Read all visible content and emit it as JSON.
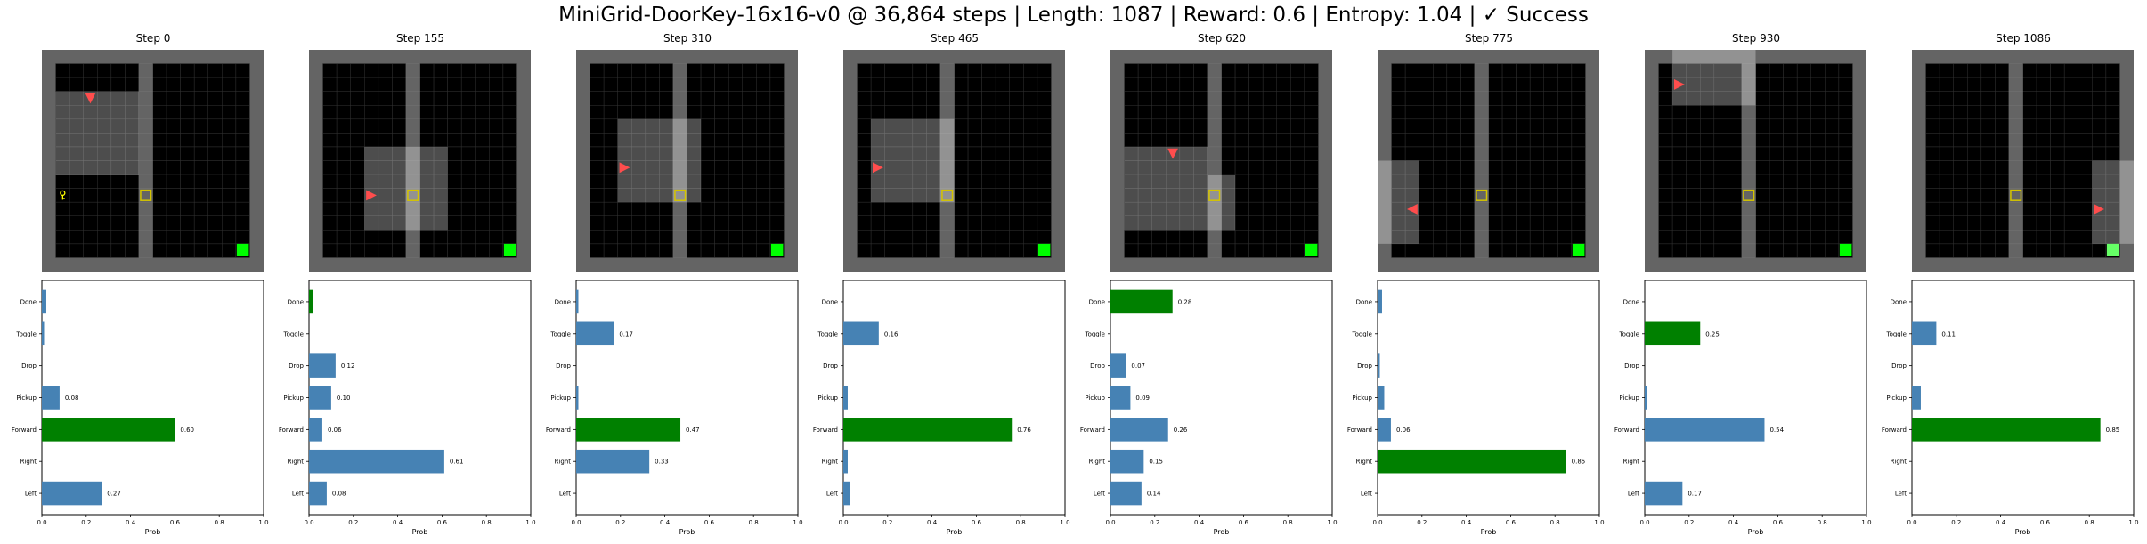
{
  "figure": {
    "title": "MiniGrid-DoorKey-16x16-v0 @ 36,864 steps | Length: 1087 | Reward: 0.6 | Entropy: 1.04 | ✓ Success"
  },
  "colors": {
    "bar_default": "#4682b4",
    "bar_selected": "#008000",
    "agent": "#ff4d4d",
    "goal": "#00ff00",
    "key": "#ffff00",
    "door": "#d4c400",
    "wall": "#646464",
    "floor": "#000000",
    "view_overlay": "rgba(255,255,255,0.30)"
  },
  "chart_data": {
    "type": "bar",
    "orientation": "horizontal",
    "actions": [
      "Left",
      "Right",
      "Forward",
      "Pickup",
      "Drop",
      "Toggle",
      "Done"
    ],
    "xlabel": "Prob",
    "xlim": [
      0,
      1
    ],
    "xticks": [
      "0.0",
      "0.2",
      "0.4",
      "0.6",
      "0.8",
      "1.0"
    ],
    "panels": [
      {
        "title": "Step 0",
        "values": [
          0.27,
          0.0,
          0.6,
          0.08,
          0.0,
          0.01,
          0.02
        ],
        "selected": "Forward",
        "labels": {
          "Left": "0.27",
          "Forward": "0.60",
          "Pickup": "0.08"
        }
      },
      {
        "title": "Step 155",
        "values": [
          0.08,
          0.61,
          0.06,
          0.1,
          0.12,
          0.0,
          0.02
        ],
        "selected": "Done",
        "labels": {
          "Left": "0.08",
          "Right": "0.61",
          "Forward": "0.06",
          "Pickup": "0.10",
          "Drop": "0.12"
        }
      },
      {
        "title": "Step 310",
        "values": [
          0.0,
          0.33,
          0.47,
          0.01,
          0.0,
          0.17,
          0.01
        ],
        "selected": "Forward",
        "labels": {
          "Right": "0.33",
          "Forward": "0.47",
          "Toggle": "0.17"
        }
      },
      {
        "title": "Step 465",
        "values": [
          0.03,
          0.02,
          0.76,
          0.02,
          0.0,
          0.16,
          0.0
        ],
        "selected": "Forward",
        "labels": {
          "Forward": "0.76",
          "Toggle": "0.16"
        }
      },
      {
        "title": "Step 620",
        "values": [
          0.14,
          0.15,
          0.26,
          0.09,
          0.07,
          0.0,
          0.28
        ],
        "selected": "Done",
        "labels": {
          "Left": "0.14",
          "Right": "0.15",
          "Forward": "0.26",
          "Pickup": "0.09",
          "Drop": "0.07",
          "Done": "0.28"
        }
      },
      {
        "title": "Step 775",
        "values": [
          0.0,
          0.85,
          0.06,
          0.03,
          0.01,
          0.0,
          0.02
        ],
        "selected": "Right",
        "labels": {
          "Right": "0.85",
          "Forward": "0.06"
        }
      },
      {
        "title": "Step 930",
        "values": [
          0.17,
          0.0,
          0.54,
          0.01,
          0.0,
          0.25,
          0.0
        ],
        "selected": "Toggle",
        "labels": {
          "Left": "0.17",
          "Forward": "0.54",
          "Toggle": "0.25"
        }
      },
      {
        "title": "Step 1086",
        "values": [
          0.0,
          0.0,
          0.85,
          0.04,
          0.0,
          0.11,
          0.0
        ],
        "selected": "Forward",
        "labels": {
          "Forward": "0.85",
          "Toggle": "0.11"
        }
      }
    ]
  },
  "grid_frames": [
    {
      "agent": [
        3,
        3
      ],
      "dir": "down",
      "view": [
        1,
        3,
        7,
        9
      ],
      "key": [
        1,
        10
      ],
      "door": [
        7,
        10
      ]
    },
    {
      "agent": [
        4,
        10
      ],
      "dir": "right",
      "view": [
        4,
        7,
        10,
        13
      ],
      "door": [
        7,
        10
      ]
    },
    {
      "agent": [
        3,
        8
      ],
      "dir": "right",
      "view": [
        3,
        5,
        9,
        11
      ],
      "door": [
        7,
        10
      ]
    },
    {
      "agent": [
        2,
        8
      ],
      "dir": "right",
      "view": [
        2,
        5,
        8,
        11
      ],
      "door": [
        7,
        10
      ]
    },
    {
      "agent": [
        4,
        7
      ],
      "dir": "down",
      "view": [
        1,
        7,
        7,
        13
      ],
      "door": [
        7,
        10
      ],
      "extra_view": [
        7,
        9,
        9,
        13
      ]
    },
    {
      "agent": [
        2,
        11
      ],
      "dir": "left",
      "view": [
        0,
        8,
        3,
        14
      ],
      "door": [
        7,
        10
      ]
    },
    {
      "agent": [
        2,
        2
      ],
      "dir": "right",
      "view": [
        2,
        0,
        8,
        4
      ],
      "door": [
        7,
        10
      ]
    },
    {
      "agent": [
        13,
        11
      ],
      "dir": "right",
      "view": [
        13,
        8,
        16,
        14
      ],
      "door": [
        7,
        10
      ],
      "goal_lit": true
    }
  ]
}
